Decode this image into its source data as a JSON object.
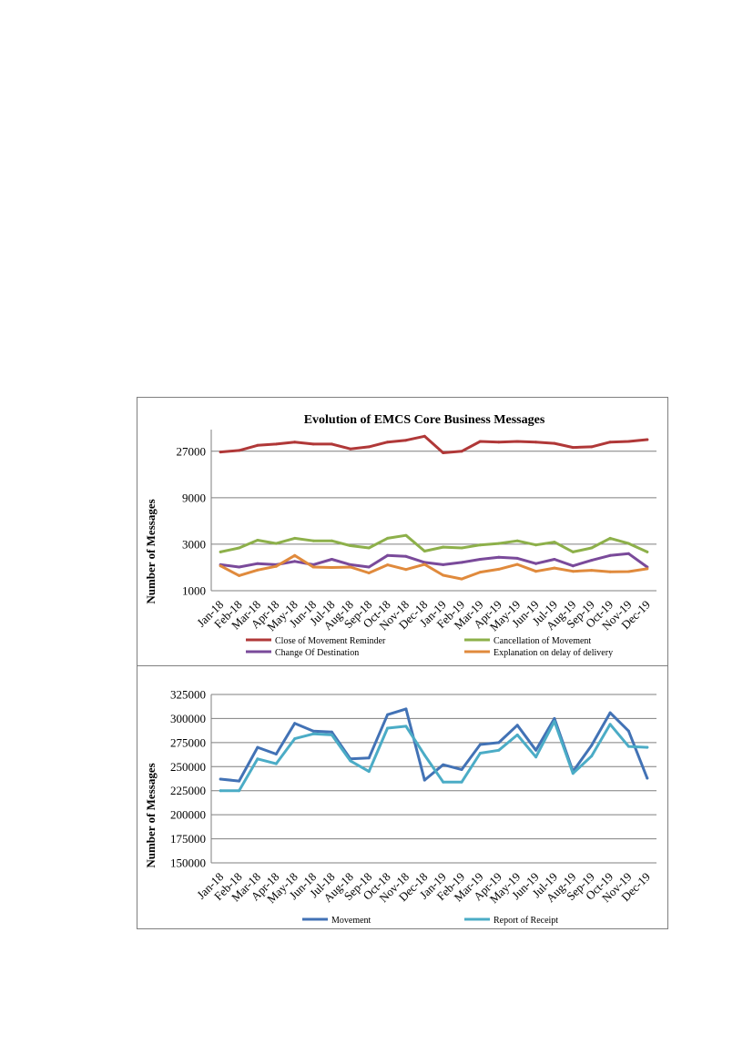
{
  "chart_data": [
    {
      "type": "line",
      "title": "Evolution of EMCS Core Business Messages",
      "ylabel": "Number of Messages",
      "y_scale": "log",
      "ylim": [
        1000,
        45000
      ],
      "yticks": [
        "1000",
        "3000",
        "9000",
        "27000"
      ],
      "categories": [
        "Jan-18",
        "Feb-18",
        "Mar-18",
        "Apr-18",
        "May-18",
        "Jun-18",
        "Jul-18",
        "Aug-18",
        "Sep-18",
        "Oct-18",
        "Nov-18",
        "Dec-18",
        "Jan-19",
        "Feb-19",
        "Mar-19",
        "Apr-19",
        "May-19",
        "Jun-19",
        "Jul-19",
        "Aug-19",
        "Sep-19",
        "Oct-19",
        "Nov-19",
        "Dec-19"
      ],
      "grid": "horizontal",
      "legend_position": "bottom",
      "series": [
        {
          "name": "Close of Movement Reminder",
          "color": "#b03838",
          "values": [
            26500,
            27500,
            31000,
            32000,
            33500,
            32000,
            32000,
            28500,
            30000,
            33500,
            35000,
            38500,
            26000,
            27000,
            34000,
            33500,
            34000,
            33500,
            32500,
            29500,
            30000,
            33500,
            34000,
            35500
          ]
        },
        {
          "name": "Cancellation of Movement",
          "color": "#8db04a",
          "values": [
            2500,
            2750,
            3300,
            3050,
            3450,
            3250,
            3250,
            2900,
            2750,
            3450,
            3700,
            2550,
            2800,
            2750,
            2950,
            3050,
            3250,
            2950,
            3150,
            2500,
            2750,
            3450,
            3050,
            2500
          ]
        },
        {
          "name": "Change Of Destination",
          "color": "#7a4a9a",
          "values": [
            1850,
            1750,
            1900,
            1850,
            2000,
            1850,
            2100,
            1850,
            1750,
            2300,
            2250,
            1950,
            1850,
            1950,
            2100,
            2200,
            2150,
            1900,
            2100,
            1800,
            2050,
            2300,
            2400,
            1750
          ]
        },
        {
          "name": "Explanation on  delay of delivery",
          "color": "#e08a3c",
          "values": [
            1800,
            1430,
            1630,
            1780,
            2300,
            1750,
            1730,
            1750,
            1520,
            1840,
            1650,
            1860,
            1440,
            1320,
            1550,
            1660,
            1860,
            1580,
            1710,
            1580,
            1620,
            1560,
            1570,
            1680
          ]
        }
      ]
    },
    {
      "type": "line",
      "ylabel": "Number of Messages",
      "ylim": [
        150000,
        325000
      ],
      "yticks": [
        "150000",
        "175000",
        "200000",
        "225000",
        "250000",
        "275000",
        "300000",
        "325000"
      ],
      "categories": [
        "Jan-18",
        "Feb-18",
        "Mar-18",
        "Apr-18",
        "May-18",
        "Jun-18",
        "Jul-18",
        "Aug-18",
        "Sep-18",
        "Oct-18",
        "Nov-18",
        "Dec-18",
        "Jan-19",
        "Feb-19",
        "Mar-19",
        "Apr-19",
        "May-19",
        "Jun-19",
        "Jul-19",
        "Aug-19",
        "Sep-19",
        "Oct-19",
        "Nov-19",
        "Dec-19"
      ],
      "grid": "horizontal",
      "legend_position": "bottom",
      "series": [
        {
          "name": "Movement",
          "color": "#4272b5",
          "values": [
            237000,
            235000,
            270000,
            263000,
            295000,
            287000,
            286000,
            258000,
            259000,
            304000,
            310000,
            236000,
            252000,
            247000,
            273000,
            275000,
            293000,
            267000,
            300000,
            245000,
            272000,
            306000,
            287000,
            238000
          ]
        },
        {
          "name": "Report of Receipt",
          "color": "#4bacc6",
          "values": [
            225000,
            225000,
            258000,
            253000,
            279000,
            284000,
            283000,
            256000,
            245000,
            290000,
            292000,
            262000,
            234000,
            234000,
            264000,
            267000,
            283000,
            260000,
            297000,
            243000,
            261000,
            294000,
            271000,
            270000
          ]
        }
      ]
    }
  ]
}
